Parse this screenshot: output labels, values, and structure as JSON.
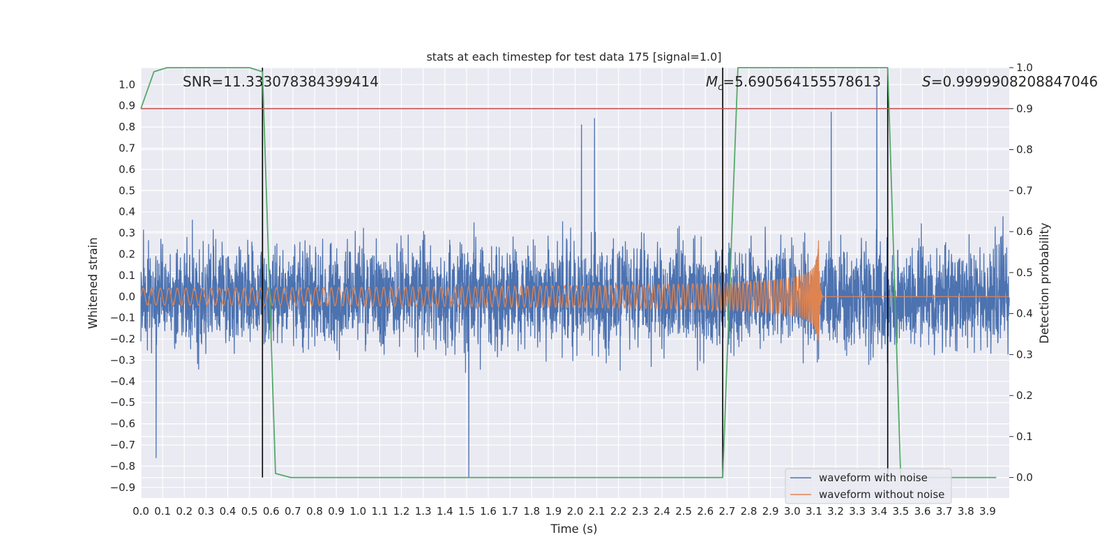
{
  "chart_data": {
    "type": "line",
    "title": "stats at each timestep for test data 175 [signal=1.0]",
    "xlabel": "Time (s)",
    "ylabel_left": "Whitened strain",
    "ylabel_right": "Detection probability",
    "xlim": [
      0.0,
      4.0
    ],
    "ylim_left": [
      -0.95,
      1.08
    ],
    "ylim_right": [
      -0.05,
      1.0
    ],
    "x_ticks": [
      "0.0",
      "0.1",
      "0.2",
      "0.3",
      "0.4",
      "0.5",
      "0.6",
      "0.7",
      "0.8",
      "0.9",
      "1.0",
      "1.1",
      "1.2",
      "1.3",
      "1.4",
      "1.5",
      "1.6",
      "1.7",
      "1.8",
      "1.9",
      "2.0",
      "2.1",
      "2.2",
      "2.3",
      "2.4",
      "2.5",
      "2.6",
      "2.7",
      "2.8",
      "2.9",
      "3.0",
      "3.1",
      "3.2",
      "3.3",
      "3.4",
      "3.5",
      "3.6",
      "3.7",
      "3.8",
      "3.9"
    ],
    "y_ticks_left": [
      "1.0",
      "0.9",
      "0.8",
      "0.7",
      "0.6",
      "0.5",
      "0.4",
      "0.3",
      "0.2",
      "0.1",
      "0.0",
      "−0.1",
      "−0.2",
      "−0.3",
      "−0.4",
      "−0.5",
      "−0.6",
      "−0.7",
      "−0.8",
      "−0.9"
    ],
    "y_ticks_right": [
      "1.0",
      "0.9",
      "0.8",
      "0.7",
      "0.6",
      "0.5",
      "0.4",
      "0.3",
      "0.2",
      "0.1",
      "0.0"
    ],
    "annotations": {
      "snr": "SNR=11.333078384399414",
      "mc": "=5.690564155578613",
      "mc_symbol": "M",
      "mc_sub": "c",
      "s": "=0.9999908208847046",
      "s_symbol": "S"
    },
    "threshold_right": 0.9,
    "event_lines_x": [
      0.56,
      2.68,
      3.44
    ],
    "detection_probability": {
      "name": "detection probability",
      "x": [
        0.0,
        0.06,
        0.12,
        0.19,
        0.25,
        0.31,
        0.37,
        0.44,
        0.5,
        0.56,
        0.62,
        0.69,
        0.75,
        0.81,
        0.87,
        0.94,
        1.0,
        1.5,
        2.0,
        2.5,
        2.62,
        2.68,
        2.75,
        2.81,
        2.87,
        2.94,
        3.0,
        3.06,
        3.12,
        3.19,
        3.25,
        3.31,
        3.37,
        3.44,
        3.5,
        3.56,
        3.62,
        3.69,
        3.75,
        3.81,
        3.87,
        3.94
      ],
      "values": [
        0.9,
        0.99,
        1.0,
        1.0,
        1.0,
        1.0,
        1.0,
        1.0,
        1.0,
        0.99,
        0.01,
        0.0,
        0.0,
        0.0,
        0.0,
        0.0,
        0.0,
        0.0,
        0.0,
        0.0,
        0.0,
        0.0,
        1.0,
        1.0,
        1.0,
        1.0,
        1.0,
        1.0,
        1.0,
        1.0,
        1.0,
        1.0,
        1.0,
        1.0,
        0.0,
        0.0,
        0.0,
        0.0,
        0.0,
        0.0,
        0.0,
        0.0
      ]
    },
    "noisy_waveform": {
      "name": "waveform with noise",
      "amplitude_range": [
        -0.85,
        1.0
      ],
      "peak_values": [
        {
          "x": 0.07,
          "y": -0.76
        },
        {
          "x": 0.56,
          "y": 0.98
        },
        {
          "x": 1.51,
          "y": -0.85
        },
        {
          "x": 2.03,
          "y": 0.81
        },
        {
          "x": 2.09,
          "y": 0.84
        },
        {
          "x": 3.18,
          "y": 0.87
        },
        {
          "x": 3.39,
          "y": 1.0
        }
      ]
    },
    "clean_waveform": {
      "name": "waveform without noise",
      "start_amplitude": 0.04,
      "merger_time": 3.12,
      "peak_amplitude": 0.34
    },
    "legend": {
      "position": "lower-right",
      "entries": [
        {
          "label": "waveform with noise",
          "color": "#4c72b0"
        },
        {
          "label": "waveform without noise",
          "color": "#dd8452"
        }
      ]
    },
    "colors": {
      "noisy": "#4c72b0",
      "clean": "#dd8452",
      "prob": "#55a868",
      "threshold": "#c44e52",
      "event": "#000000",
      "background": "#eaeaf2"
    }
  }
}
